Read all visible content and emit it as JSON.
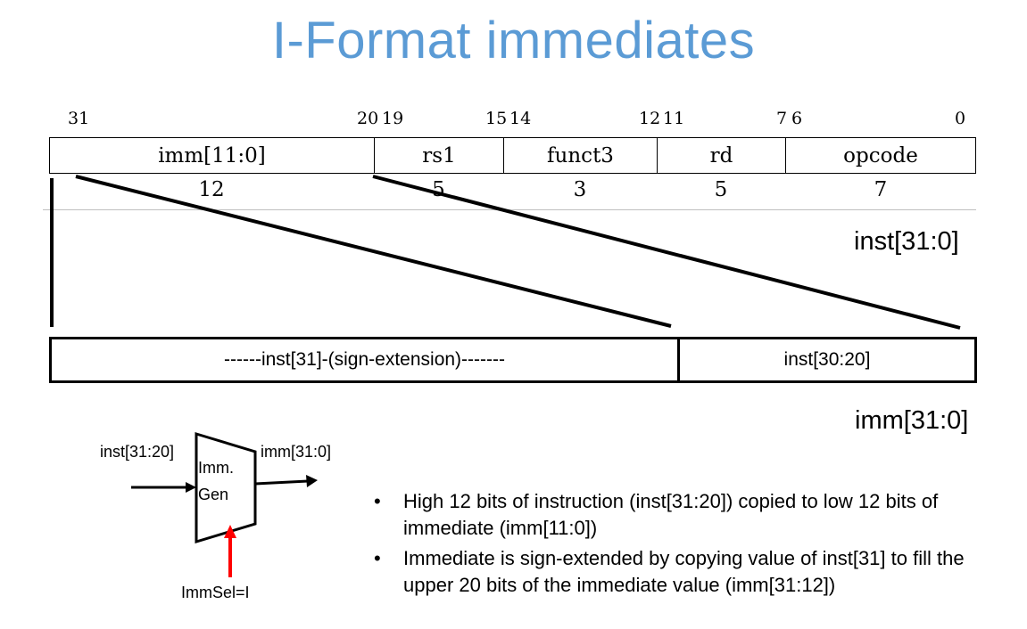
{
  "title": "I-Format immediates",
  "bit_positions": [
    "31",
    "20",
    "19",
    "15",
    "14",
    "12",
    "11",
    "7",
    "6",
    "0"
  ],
  "fields": [
    {
      "name": "imm[11:0]",
      "width": "12"
    },
    {
      "name": "rs1",
      "width": "5"
    },
    {
      "name": "funct3",
      "width": "3"
    },
    {
      "name": "rd",
      "width": "5"
    },
    {
      "name": "opcode",
      "width": "7"
    }
  ],
  "inst_label": "inst[31:0]",
  "imm_fields": {
    "sign_extension": "------inst[31]-(sign-extension)-------",
    "low_bits": "inst[30:20]"
  },
  "imm_label": "imm[31:0]",
  "imm_gen": {
    "input_label": "inst[31:20]",
    "output_label": "imm[31:0]",
    "block_line1": "Imm.",
    "block_line2": "Gen",
    "select_label": "ImmSel=I",
    "select_color": "#ff0000"
  },
  "bullets": [
    "High 12 bits of instruction (inst[31:20]) copied to low 12 bits of immediate (imm[11:0])",
    "Immediate is sign-extended by copying value of inst[31] to fill the upper 20 bits of the immediate value (imm[31:12])"
  ],
  "title_color": "#5b9bd5"
}
